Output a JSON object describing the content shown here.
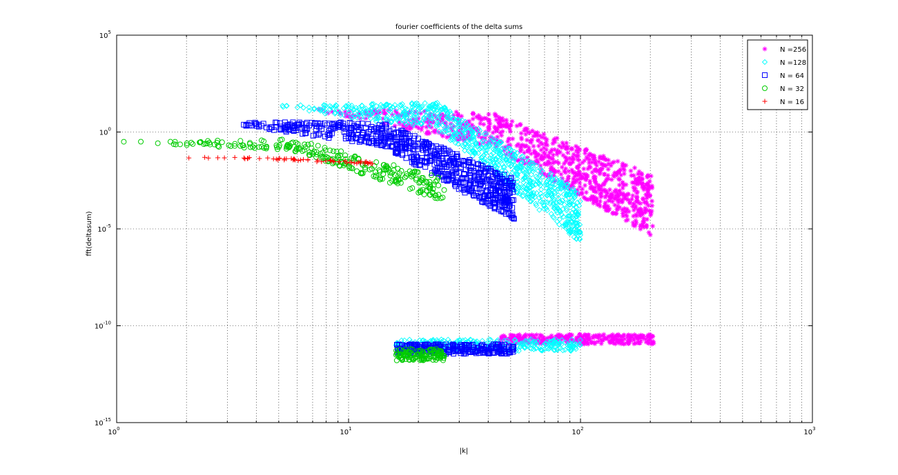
{
  "chart_data": {
    "type": "scatter",
    "title": "fourier coefficients of the delta sums",
    "xlabel": "|k|",
    "ylabel": "fft(deltasum)",
    "xscale": "log",
    "yscale": "log",
    "xlim": [
      1,
      1000
    ],
    "ylim": [
      1e-15,
      100000.0
    ],
    "grid": true,
    "legend_position": "top-right",
    "x_ticks": [
      {
        "base": "10",
        "exp": "0"
      },
      {
        "base": "10",
        "exp": "1"
      },
      {
        "base": "10",
        "exp": "2"
      },
      {
        "base": "10",
        "exp": "3"
      }
    ],
    "y_ticks": [
      {
        "base": "10",
        "exp": "-15"
      },
      {
        "base": "10",
        "exp": "-10"
      },
      {
        "base": "10",
        "exp": "-5"
      },
      {
        "base": "10",
        "exp": "0"
      },
      {
        "base": "10",
        "exp": "5"
      }
    ],
    "series": [
      {
        "name": "N =256",
        "marker": "*",
        "color": "#ff00ff",
        "upper_band": {
          "x_range": [
            6.0,
            205
          ],
          "log10y_start": 1.3,
          "log10y_mid": 0.1,
          "log10y_end": -3.8,
          "spread": 1.6,
          "count": 900
        },
        "lower_band": {
          "x_range": [
            45,
            210
          ],
          "log10y_center": -10.7,
          "spread": 0.25,
          "count": 300
        }
      },
      {
        "name": "N =128",
        "marker": "diamond",
        "color": "#00ffff",
        "upper_band": {
          "x_range": [
            4.3,
            100
          ],
          "log10y_start": 1.4,
          "log10y_mid": 0.8,
          "log10y_end": -4.4,
          "spread": 1.3,
          "count": 800
        },
        "lower_band": {
          "x_range": [
            16,
            100
          ],
          "log10y_center": -11.0,
          "spread": 0.3,
          "count": 300
        }
      },
      {
        "name": "N = 64",
        "marker": "square",
        "color": "#0000ff",
        "upper_band": {
          "x_range": [
            2.8,
            52
          ],
          "log10y_start": 0.5,
          "log10y_mid": -0.1,
          "log10y_end": -3.5,
          "spread": 1.1,
          "count": 700
        },
        "lower_band": {
          "x_range": [
            16,
            52
          ],
          "log10y_center": -11.2,
          "spread": 0.25,
          "count": 250
        }
      },
      {
        "name": "N = 32",
        "marker": "circle",
        "color": "#00cc00",
        "upper_band": {
          "x_range": [
            1.0,
            26
          ],
          "log10y_start": -0.5,
          "log10y_mid": -0.7,
          "log10y_end": -3.0,
          "spread": 0.6,
          "count": 260
        },
        "lower_band": {
          "x_range": [
            16,
            26
          ],
          "log10y_center": -11.5,
          "spread": 0.3,
          "count": 120
        }
      },
      {
        "name": "N = 16",
        "marker": "+",
        "color": "#ff0000",
        "upper_band": {
          "x_range": [
            1.0,
            13
          ],
          "log10y_start": -1.3,
          "log10y_mid": -1.35,
          "log10y_end": -1.6,
          "spread": 0.08,
          "count": 60
        }
      }
    ]
  }
}
